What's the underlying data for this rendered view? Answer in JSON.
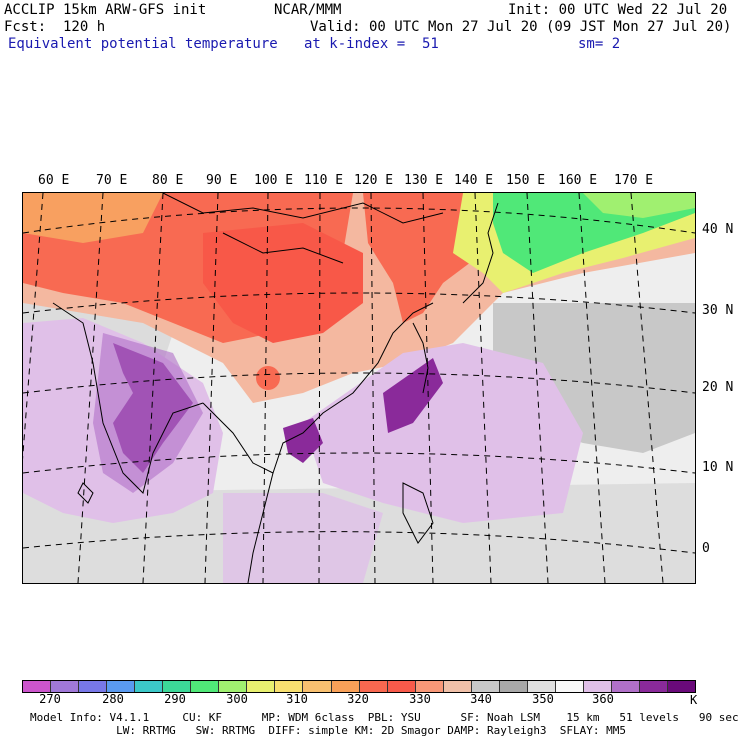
{
  "header": {
    "model": "ACCLIP 15km ARW-GFS init",
    "org": "NCAR/MMM",
    "init": "Init: 00 UTC Wed 22 Jul 20",
    "fcst": "Fcst:  120 h",
    "valid": "Valid: 00 UTC Mon 27 Jul 20 (09 JST Mon 27 Jul 20)",
    "field": "Equivalent potential temperature",
    "level": "at k-index =  51",
    "smooth": "sm= 2"
  },
  "map": {
    "lon_labels": [
      "60 E",
      "70 E",
      "80 E",
      "90 E",
      "100 E",
      "110 E",
      "120 E",
      "130 E",
      "140 E",
      "150 E",
      "160 E",
      "170 E"
    ],
    "lat_labels": [
      "40 N",
      "30 N",
      "20 N",
      "10 N",
      "0"
    ]
  },
  "colorbar": {
    "colors": [
      "#cc55cc",
      "#a078d8",
      "#7878e8",
      "#5a9af0",
      "#3cc8c8",
      "#3cd898",
      "#50e878",
      "#a0f070",
      "#e8f070",
      "#f8e070",
      "#f8c070",
      "#f8a058",
      "#f86850",
      "#f85a4a",
      "#f89878",
      "#f0c0a8",
      "#c8c8c8",
      "#a8a8a8",
      "#e0e0e0",
      "#f8f8f8",
      "#e0c0e8",
      "#b070c8",
      "#8a2a9a",
      "#6a0a7a"
    ],
    "ticks": [
      "270",
      "280",
      "290",
      "300",
      "310",
      "320",
      "330",
      "340",
      "350",
      "360"
    ],
    "unit": "K"
  },
  "footer": {
    "line1": "Model Info: V4.1.1     CU: KF      MP: WDM 6class  PBL: YSU      SF: Noah LSM    15 km   51 levels   90 sec",
    "line2": "             LW: RRTMG   SW: RRTMG  DIFF: simple KM: 2D Smagor DAMP: Rayleigh3  SFLAY: MM5"
  }
}
